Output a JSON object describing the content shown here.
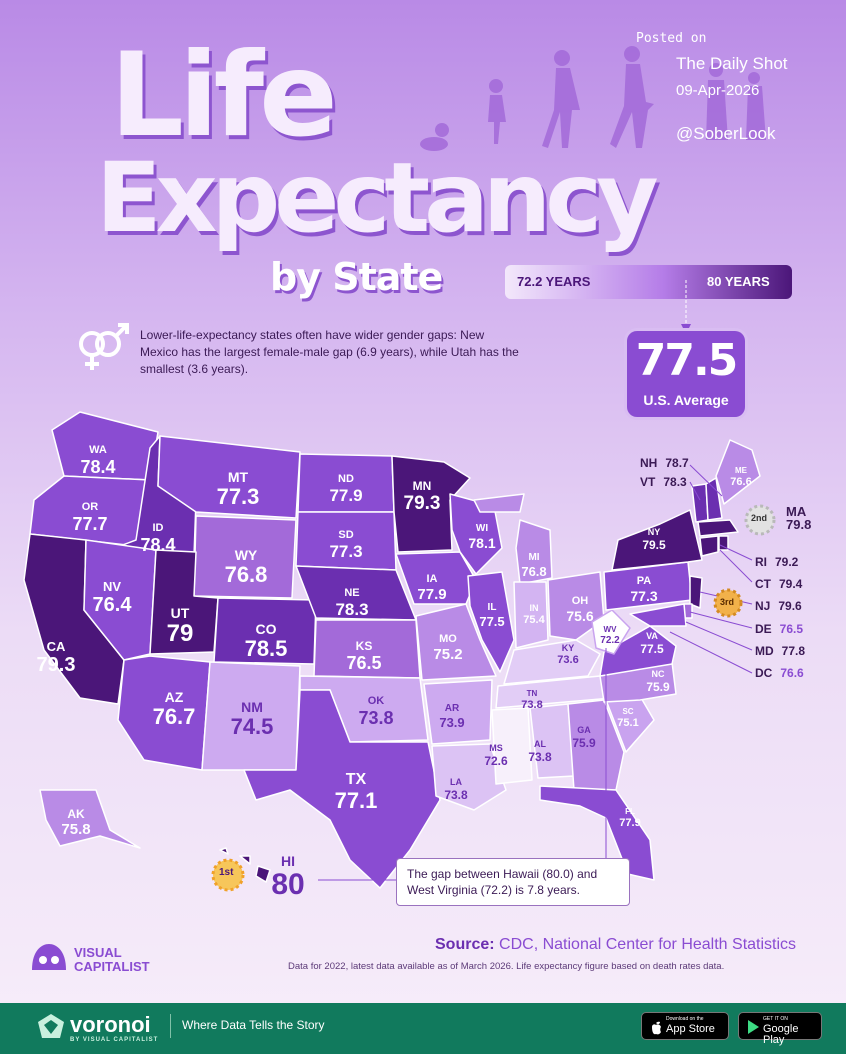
{
  "title": {
    "line1": "Life",
    "line2": "Expectancy",
    "line3": "by State"
  },
  "posted": {
    "label": "Posted on",
    "source": "The Daily Shot",
    "date": "09-Apr-2026",
    "handle": "@SoberLook"
  },
  "legend": {
    "low_label": "72.2 YEARS",
    "high_label": "80 YEARS",
    "low": 72.2,
    "high": 80
  },
  "us_average": {
    "value": "77.5",
    "label": "U.S. Average"
  },
  "gender_note": "Lower-life-expectancy states often have wider gender gaps: New Mexico has the largest female-male gap (6.9 years), while Utah has the smallest (3.6 years).",
  "callout": "The gap between Hawaii (80.0) and West Virginia (72.2) is 7.8 years.",
  "ranks": {
    "first": "1st",
    "second": "2nd",
    "third": "3rd"
  },
  "source": {
    "label": "Source:",
    "text": "CDC, National Center for Health Statistics"
  },
  "footnote": "Data for 2022, latest data available as of March 2026. Life expectancy figure based on death rates data.",
  "brand": {
    "line1": "VISUAL",
    "line2": "CAPITALIST",
    "voronoi": "voronoi",
    "voronoi_sub": "BY VISUAL CAPITALIST",
    "tagline": "Where Data Tells the Story"
  },
  "stores": {
    "apple_small": "Download on the",
    "apple": "App Store",
    "google_small": "GET IT ON",
    "google": "Google Play"
  },
  "colors": {
    "darkest": "#4b1679",
    "dark": "#6b2fb0",
    "mid": "#8a4cd2",
    "light": "#b98be6",
    "lightest": "#f3e8fb",
    "footer": "#117a5d"
  },
  "chart_data": {
    "type": "choropleth map",
    "unit": "years",
    "states": [
      {
        "abbr": "WA",
        "value": "78.4"
      },
      {
        "abbr": "OR",
        "value": "77.7"
      },
      {
        "abbr": "CA",
        "value": "79.3"
      },
      {
        "abbr": "ID",
        "value": "78.4"
      },
      {
        "abbr": "NV",
        "value": "76.4"
      },
      {
        "abbr": "MT",
        "value": "77.3"
      },
      {
        "abbr": "WY",
        "value": "76.8"
      },
      {
        "abbr": "UT",
        "value": "79"
      },
      {
        "abbr": "CO",
        "value": "78.5"
      },
      {
        "abbr": "AZ",
        "value": "76.7"
      },
      {
        "abbr": "NM",
        "value": "74.5"
      },
      {
        "abbr": "ND",
        "value": "77.9"
      },
      {
        "abbr": "SD",
        "value": "77.3"
      },
      {
        "abbr": "NE",
        "value": "78.3"
      },
      {
        "abbr": "KS",
        "value": "76.5"
      },
      {
        "abbr": "OK",
        "value": "73.8"
      },
      {
        "abbr": "TX",
        "value": "77.1"
      },
      {
        "abbr": "MN",
        "value": "79.3"
      },
      {
        "abbr": "IA",
        "value": "77.9"
      },
      {
        "abbr": "MO",
        "value": "75.2"
      },
      {
        "abbr": "AR",
        "value": "73.9"
      },
      {
        "abbr": "LA",
        "value": "73.8"
      },
      {
        "abbr": "WI",
        "value": "78.1"
      },
      {
        "abbr": "IL",
        "value": "77.5"
      },
      {
        "abbr": "MI",
        "value": "76.8"
      },
      {
        "abbr": "IN",
        "value": "75.4"
      },
      {
        "abbr": "OH",
        "value": "75.6"
      },
      {
        "abbr": "KY",
        "value": "73.6"
      },
      {
        "abbr": "TN",
        "value": "73.8"
      },
      {
        "abbr": "MS",
        "value": "72.6"
      },
      {
        "abbr": "AL",
        "value": "73.8"
      },
      {
        "abbr": "GA",
        "value": "75.9"
      },
      {
        "abbr": "FL",
        "value": "77.9"
      },
      {
        "abbr": "SC",
        "value": "75.1"
      },
      {
        "abbr": "NC",
        "value": "75.9"
      },
      {
        "abbr": "VA",
        "value": "77.5"
      },
      {
        "abbr": "WV",
        "value": "72.2"
      },
      {
        "abbr": "PA",
        "value": "77.3"
      },
      {
        "abbr": "NY",
        "value": "79.5"
      },
      {
        "abbr": "ME",
        "value": "76.6"
      },
      {
        "abbr": "NH",
        "value": "78.7"
      },
      {
        "abbr": "VT",
        "value": "78.3"
      },
      {
        "abbr": "MA",
        "value": "79.8"
      },
      {
        "abbr": "RI",
        "value": "79.2"
      },
      {
        "abbr": "CT",
        "value": "79.4"
      },
      {
        "abbr": "NJ",
        "value": "79.6"
      },
      {
        "abbr": "DE",
        "value": "76.5"
      },
      {
        "abbr": "MD",
        "value": "77.8"
      },
      {
        "abbr": "DC",
        "value": "76.6"
      },
      {
        "abbr": "AK",
        "value": "75.8"
      },
      {
        "abbr": "HI",
        "value": "80"
      }
    ]
  }
}
